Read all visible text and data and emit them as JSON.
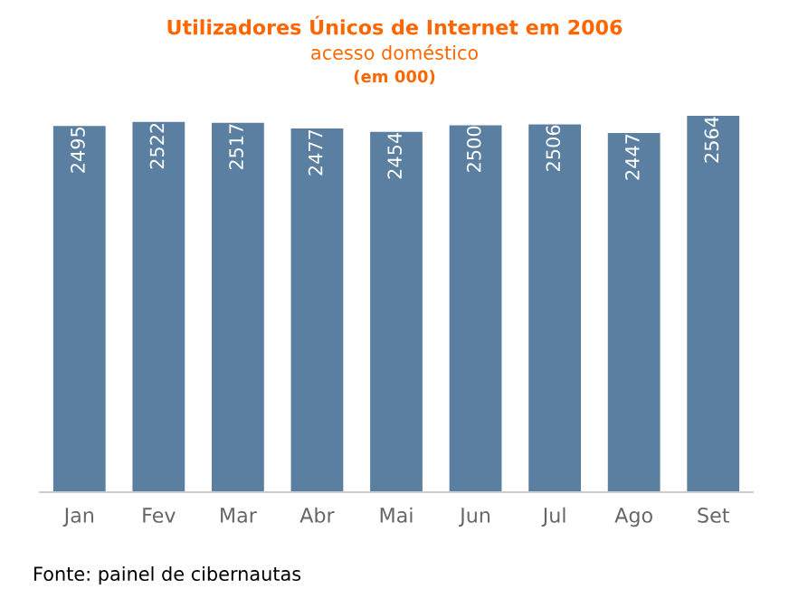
{
  "chart_data": {
    "type": "bar",
    "title": "Utilizadores Únicos de Internet em 2006",
    "subtitle": "acesso doméstico",
    "annotations": [
      "(em 000)",
      "Fonte: painel de cibernautas"
    ],
    "categories": [
      "Jan",
      "Fev",
      "Mar",
      "Abr",
      "Mai",
      "Jun",
      "Jul",
      "Ago",
      "Set"
    ],
    "values": [
      2495,
      2522,
      2517,
      2477,
      2454,
      2500,
      2506,
      2447,
      2564
    ],
    "color": "#5b7fa0",
    "data_labels": true,
    "grid": false,
    "legend": false
  }
}
